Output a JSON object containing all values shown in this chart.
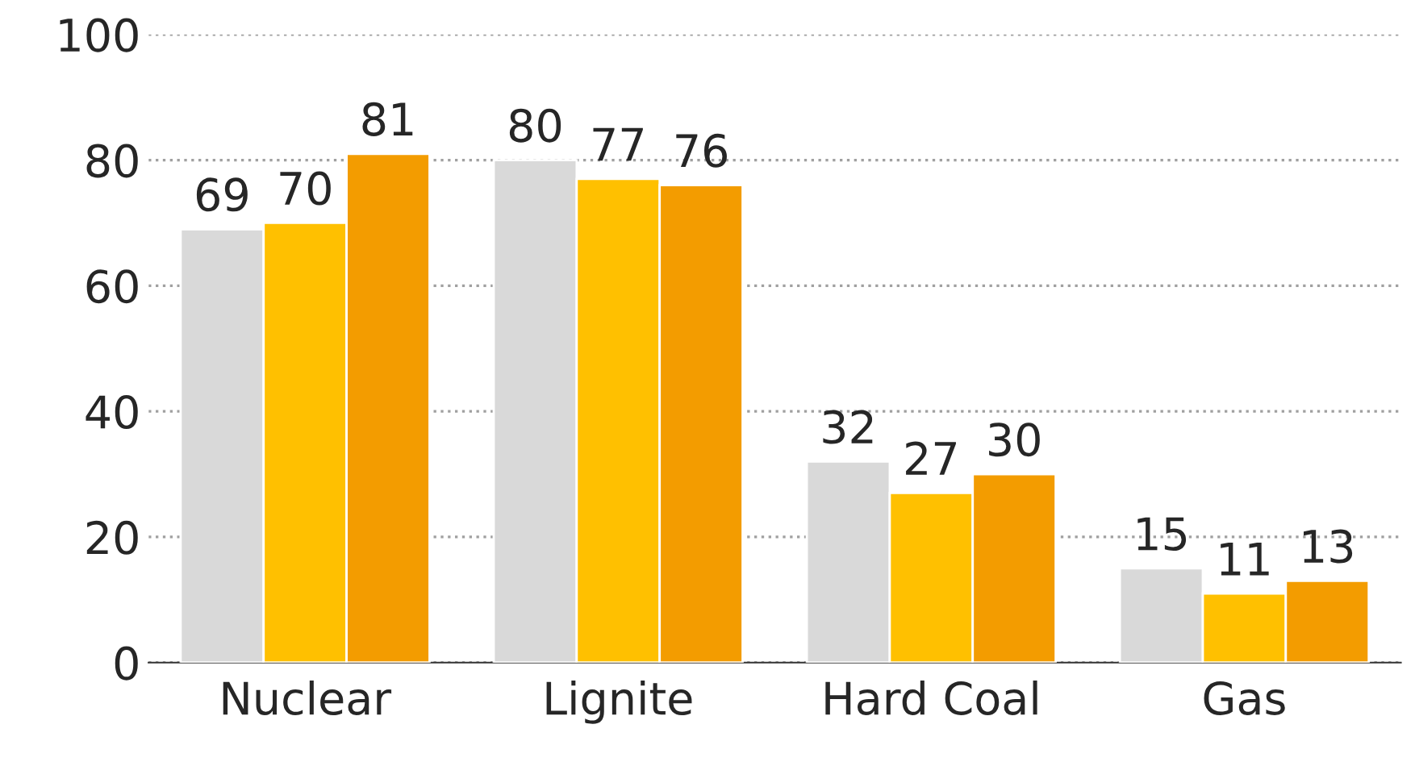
{
  "chart_data": {
    "type": "bar",
    "categories": [
      "Nuclear",
      "Lignite",
      "Hard Coal",
      "Gas"
    ],
    "series": [
      {
        "color": "#d9d9d9",
        "values": [
          69,
          80,
          32,
          15
        ]
      },
      {
        "color": "#ffc000",
        "values": [
          70,
          77,
          27,
          11
        ]
      },
      {
        "color": "#f39c00",
        "values": [
          81,
          76,
          30,
          13
        ]
      }
    ],
    "ylim": [
      0,
      100
    ],
    "yticks": [
      0,
      20,
      40,
      60,
      80,
      100
    ],
    "grid": "y",
    "data_labels": true
  }
}
